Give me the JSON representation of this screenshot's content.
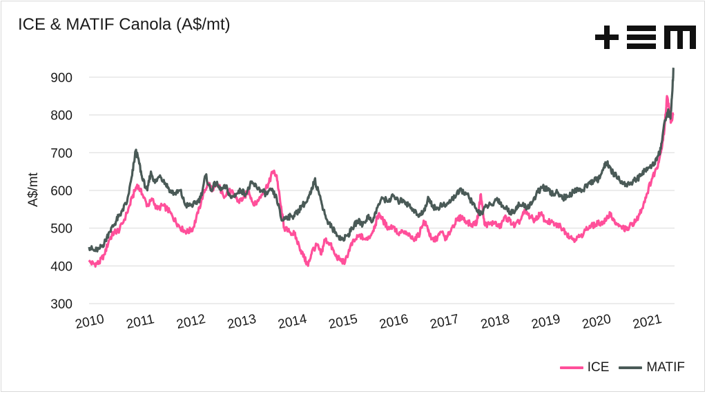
{
  "title": "ICE & MATIF Canola (A$/mt)",
  "logo": {
    "name": "tem-logo",
    "color": "#111111"
  },
  "chart_data": {
    "type": "line",
    "title": "ICE & MATIF Canola (A$/mt)",
    "xlabel": "",
    "ylabel": "A$/mt",
    "ylim": [
      300,
      940
    ],
    "yticks": [
      300,
      400,
      500,
      600,
      700,
      800,
      900
    ],
    "xticks": [
      "2010",
      "2011",
      "2012",
      "2013",
      "2014",
      "2015",
      "2016",
      "2017",
      "2018",
      "2019",
      "2020",
      "2021"
    ],
    "xlim": [
      2010.0,
      2021.55
    ],
    "grid": true,
    "legend_position": "bottom-right",
    "series": [
      {
        "name": "ICE",
        "color": "#ff4f9a",
        "points": [
          [
            2010.0,
            410
          ],
          [
            2010.1,
            405
          ],
          [
            2010.2,
            408
          ],
          [
            2010.3,
            430
          ],
          [
            2010.4,
            470
          ],
          [
            2010.5,
            490
          ],
          [
            2010.6,
            495
          ],
          [
            2010.75,
            540
          ],
          [
            2010.85,
            580
          ],
          [
            2010.95,
            615
          ],
          [
            2011.05,
            590
          ],
          [
            2011.15,
            560
          ],
          [
            2011.25,
            575
          ],
          [
            2011.35,
            550
          ],
          [
            2011.45,
            560
          ],
          [
            2011.55,
            550
          ],
          [
            2011.65,
            530
          ],
          [
            2011.75,
            510
          ],
          [
            2011.85,
            495
          ],
          [
            2011.95,
            490
          ],
          [
            2012.05,
            500
          ],
          [
            2012.15,
            540
          ],
          [
            2012.25,
            590
          ],
          [
            2012.35,
            620
          ],
          [
            2012.45,
            600
          ],
          [
            2012.55,
            615
          ],
          [
            2012.65,
            585
          ],
          [
            2012.75,
            600
          ],
          [
            2012.85,
            590
          ],
          [
            2012.95,
            570
          ],
          [
            2013.05,
            580
          ],
          [
            2013.15,
            600
          ],
          [
            2013.25,
            560
          ],
          [
            2013.35,
            575
          ],
          [
            2013.45,
            600
          ],
          [
            2013.55,
            620
          ],
          [
            2013.62,
            650
          ],
          [
            2013.7,
            640
          ],
          [
            2013.78,
            560
          ],
          [
            2013.85,
            500
          ],
          [
            2013.95,
            490
          ],
          [
            2014.05,
            485
          ],
          [
            2014.15,
            450
          ],
          [
            2014.25,
            420
          ],
          [
            2014.32,
            400
          ],
          [
            2014.4,
            440
          ],
          [
            2014.5,
            455
          ],
          [
            2014.58,
            430
          ],
          [
            2014.65,
            470
          ],
          [
            2014.75,
            460
          ],
          [
            2014.85,
            430
          ],
          [
            2014.95,
            415
          ],
          [
            2015.05,
            410
          ],
          [
            2015.15,
            450
          ],
          [
            2015.25,
            470
          ],
          [
            2015.35,
            480
          ],
          [
            2015.45,
            470
          ],
          [
            2015.55,
            480
          ],
          [
            2015.65,
            510
          ],
          [
            2015.72,
            540
          ],
          [
            2015.8,
            520
          ],
          [
            2015.9,
            500
          ],
          [
            2016.0,
            505
          ],
          [
            2016.1,
            485
          ],
          [
            2016.2,
            490
          ],
          [
            2016.3,
            480
          ],
          [
            2016.4,
            470
          ],
          [
            2016.5,
            480
          ],
          [
            2016.6,
            520
          ],
          [
            2016.68,
            500
          ],
          [
            2016.75,
            470
          ],
          [
            2016.85,
            470
          ],
          [
            2016.95,
            490
          ],
          [
            2017.05,
            470
          ],
          [
            2017.15,
            500
          ],
          [
            2017.25,
            520
          ],
          [
            2017.35,
            530
          ],
          [
            2017.45,
            515
          ],
          [
            2017.55,
            510
          ],
          [
            2017.65,
            515
          ],
          [
            2017.73,
            590
          ],
          [
            2017.8,
            510
          ],
          [
            2017.9,
            510
          ],
          [
            2018.0,
            515
          ],
          [
            2018.1,
            500
          ],
          [
            2018.2,
            530
          ],
          [
            2018.3,
            520
          ],
          [
            2018.4,
            505
          ],
          [
            2018.5,
            520
          ],
          [
            2018.6,
            545
          ],
          [
            2018.7,
            530
          ],
          [
            2018.8,
            520
          ],
          [
            2018.9,
            540
          ],
          [
            2019.0,
            520
          ],
          [
            2019.1,
            515
          ],
          [
            2019.2,
            510
          ],
          [
            2019.3,
            505
          ],
          [
            2019.4,
            490
          ],
          [
            2019.5,
            475
          ],
          [
            2019.6,
            470
          ],
          [
            2019.7,
            480
          ],
          [
            2019.8,
            495
          ],
          [
            2019.9,
            505
          ],
          [
            2020.0,
            510
          ],
          [
            2020.1,
            515
          ],
          [
            2020.2,
            520
          ],
          [
            2020.28,
            540
          ],
          [
            2020.35,
            520
          ],
          [
            2020.45,
            505
          ],
          [
            2020.55,
            500
          ],
          [
            2020.62,
            495
          ],
          [
            2020.7,
            510
          ],
          [
            2020.8,
            520
          ],
          [
            2020.9,
            550
          ],
          [
            2021.0,
            590
          ],
          [
            2021.1,
            630
          ],
          [
            2021.2,
            660
          ],
          [
            2021.28,
            700
          ],
          [
            2021.35,
            760
          ],
          [
            2021.4,
            850
          ],
          [
            2021.44,
            820
          ],
          [
            2021.48,
            780
          ],
          [
            2021.52,
            800
          ]
        ]
      },
      {
        "name": "MATIF",
        "color": "#4a5a57",
        "points": [
          [
            2010.0,
            450
          ],
          [
            2010.1,
            440
          ],
          [
            2010.2,
            445
          ],
          [
            2010.3,
            460
          ],
          [
            2010.4,
            490
          ],
          [
            2010.5,
            510
          ],
          [
            2010.58,
            530
          ],
          [
            2010.65,
            545
          ],
          [
            2010.75,
            570
          ],
          [
            2010.85,
            640
          ],
          [
            2010.92,
            705
          ],
          [
            2010.98,
            680
          ],
          [
            2011.05,
            630
          ],
          [
            2011.15,
            600
          ],
          [
            2011.22,
            650
          ],
          [
            2011.3,
            620
          ],
          [
            2011.4,
            640
          ],
          [
            2011.5,
            620
          ],
          [
            2011.6,
            600
          ],
          [
            2011.7,
            590
          ],
          [
            2011.8,
            600
          ],
          [
            2011.9,
            560
          ],
          [
            2012.0,
            560
          ],
          [
            2012.1,
            565
          ],
          [
            2012.2,
            580
          ],
          [
            2012.3,
            640
          ],
          [
            2012.4,
            600
          ],
          [
            2012.5,
            620
          ],
          [
            2012.6,
            600
          ],
          [
            2012.7,
            610
          ],
          [
            2012.8,
            580
          ],
          [
            2012.9,
            590
          ],
          [
            2013.0,
            600
          ],
          [
            2013.1,
            590
          ],
          [
            2013.2,
            620
          ],
          [
            2013.3,
            610
          ],
          [
            2013.4,
            600
          ],
          [
            2013.5,
            590
          ],
          [
            2013.6,
            600
          ],
          [
            2013.7,
            580
          ],
          [
            2013.8,
            520
          ],
          [
            2013.9,
            530
          ],
          [
            2014.0,
            530
          ],
          [
            2014.1,
            540
          ],
          [
            2014.2,
            560
          ],
          [
            2014.3,
            570
          ],
          [
            2014.38,
            595
          ],
          [
            2014.45,
            628
          ],
          [
            2014.52,
            600
          ],
          [
            2014.6,
            560
          ],
          [
            2014.7,
            520
          ],
          [
            2014.8,
            500
          ],
          [
            2014.9,
            480
          ],
          [
            2015.0,
            470
          ],
          [
            2015.1,
            480
          ],
          [
            2015.2,
            500
          ],
          [
            2015.3,
            520
          ],
          [
            2015.4,
            510
          ],
          [
            2015.5,
            530
          ],
          [
            2015.6,
            520
          ],
          [
            2015.7,
            560
          ],
          [
            2015.8,
            580
          ],
          [
            2015.9,
            570
          ],
          [
            2016.0,
            585
          ],
          [
            2016.1,
            570
          ],
          [
            2016.2,
            575
          ],
          [
            2016.3,
            560
          ],
          [
            2016.4,
            550
          ],
          [
            2016.5,
            530
          ],
          [
            2016.6,
            545
          ],
          [
            2016.7,
            580
          ],
          [
            2016.78,
            560
          ],
          [
            2016.85,
            550
          ],
          [
            2016.95,
            560
          ],
          [
            2017.05,
            560
          ],
          [
            2017.15,
            575
          ],
          [
            2017.25,
            590
          ],
          [
            2017.35,
            600
          ],
          [
            2017.45,
            590
          ],
          [
            2017.55,
            570
          ],
          [
            2017.65,
            545
          ],
          [
            2017.75,
            540
          ],
          [
            2017.85,
            560
          ],
          [
            2017.95,
            560
          ],
          [
            2018.05,
            580
          ],
          [
            2018.15,
            560
          ],
          [
            2018.25,
            550
          ],
          [
            2018.35,
            540
          ],
          [
            2018.45,
            560
          ],
          [
            2018.55,
            560
          ],
          [
            2018.65,
            555
          ],
          [
            2018.75,
            570
          ],
          [
            2018.85,
            595
          ],
          [
            2018.95,
            610
          ],
          [
            2019.05,
            600
          ],
          [
            2019.15,
            590
          ],
          [
            2019.25,
            595
          ],
          [
            2019.35,
            580
          ],
          [
            2019.45,
            585
          ],
          [
            2019.55,
            595
          ],
          [
            2019.65,
            605
          ],
          [
            2019.75,
            600
          ],
          [
            2019.85,
            620
          ],
          [
            2019.95,
            625
          ],
          [
            2020.05,
            630
          ],
          [
            2020.15,
            660
          ],
          [
            2020.22,
            675
          ],
          [
            2020.3,
            650
          ],
          [
            2020.4,
            640
          ],
          [
            2020.5,
            620
          ],
          [
            2020.6,
            615
          ],
          [
            2020.7,
            620
          ],
          [
            2020.8,
            630
          ],
          [
            2020.9,
            640
          ],
          [
            2021.0,
            660
          ],
          [
            2021.1,
            665
          ],
          [
            2021.2,
            680
          ],
          [
            2021.28,
            710
          ],
          [
            2021.35,
            780
          ],
          [
            2021.42,
            810
          ],
          [
            2021.47,
            790
          ],
          [
            2021.5,
            850
          ],
          [
            2021.53,
            925
          ]
        ]
      }
    ]
  }
}
